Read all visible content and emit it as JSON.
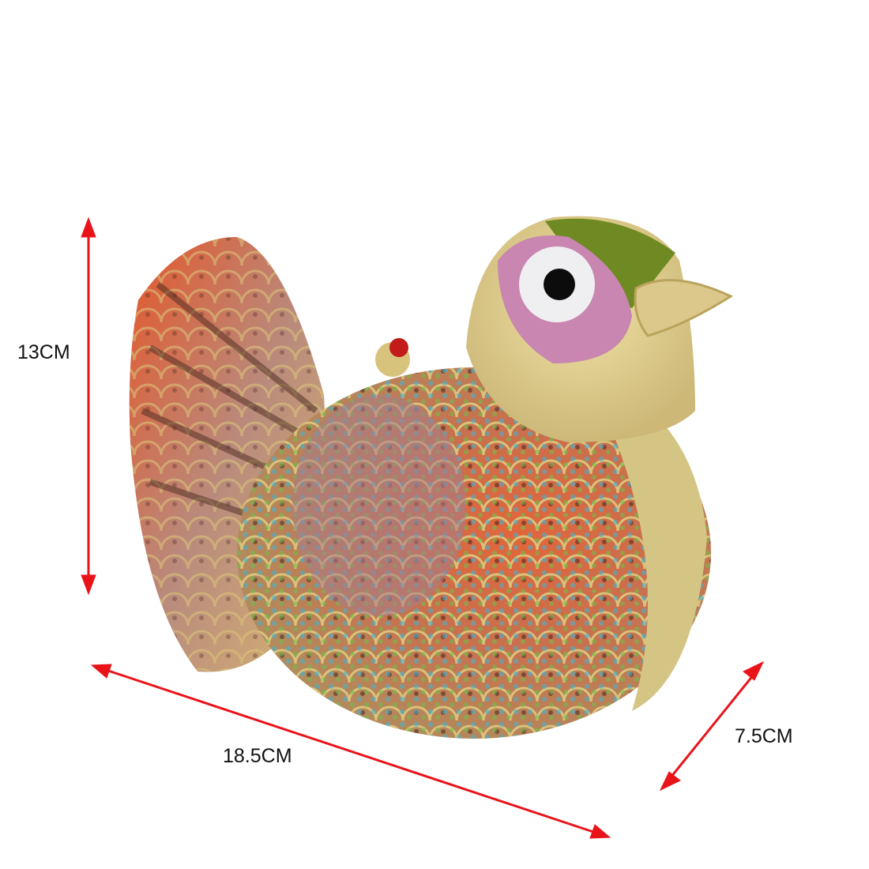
{
  "product": {
    "subject": "jeweled bird clutch",
    "colors": {
      "gold": "#d9c27a",
      "orange": "#e8501e",
      "lilac": "#b58aa6",
      "green": "#6f8a22",
      "turquoise": "#3fb6d4",
      "dark": "#3a1e18",
      "arrow": "#e8141a"
    }
  },
  "dimensions": {
    "height": "13CM",
    "length": "18.5CM",
    "depth": "7.5CM"
  }
}
